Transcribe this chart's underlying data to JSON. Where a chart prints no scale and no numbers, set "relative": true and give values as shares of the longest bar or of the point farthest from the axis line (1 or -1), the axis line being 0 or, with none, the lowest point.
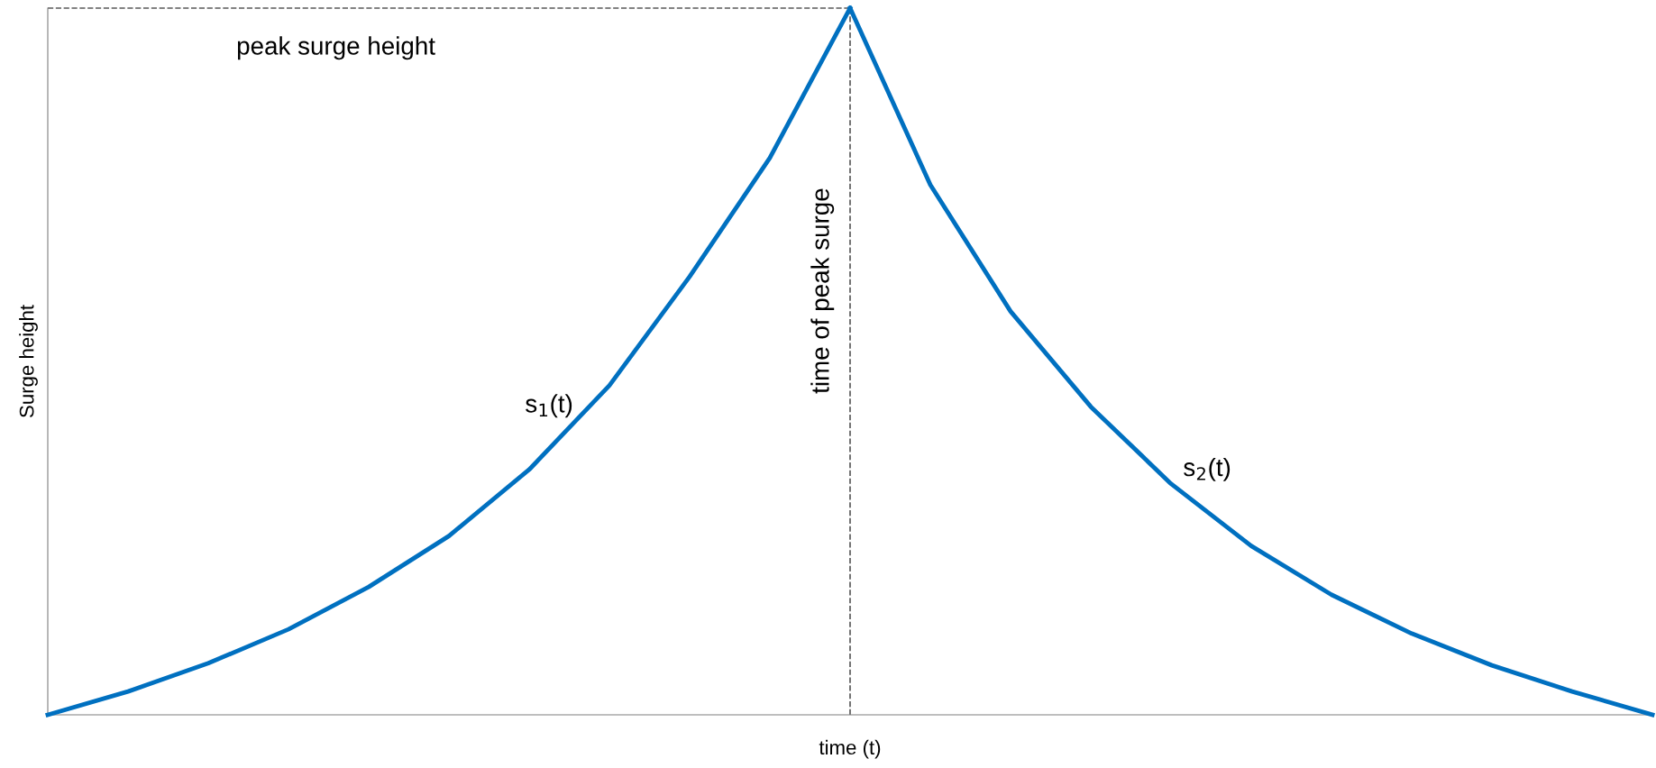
{
  "chart_data": {
    "type": "line",
    "relative": true,
    "xlabel": "time (t)",
    "ylabel": "Surge height",
    "categories": [
      null,
      null,
      null,
      null,
      null,
      null,
      null,
      null,
      null,
      null,
      null,
      null,
      null,
      null,
      null,
      null,
      null,
      null,
      null,
      null,
      null
    ],
    "series": [
      {
        "name": "s$_{1}$(t)",
        "color": "#0070c0",
        "values": [
          0,
          0.033,
          0.073,
          0.121,
          0.181,
          0.253,
          0.347,
          0.466,
          0.62,
          0.788,
          1,
          null,
          null,
          null,
          null,
          null,
          null,
          null,
          null,
          null,
          null
        ]
      },
      {
        "name": "s$_{2}$(t)",
        "color": "#0070c0",
        "values": [
          null,
          null,
          null,
          null,
          null,
          null,
          null,
          null,
          null,
          null,
          1,
          0.75,
          0.571,
          0.436,
          0.327,
          0.239,
          0.17,
          0.115,
          0.07,
          0.033,
          0
        ]
      }
    ],
    "ref_lines": [
      {
        "axis": "y",
        "value": 1,
        "label": "peak surge height",
        "color": "#595959",
        "line_style": "dashed"
      }
    ],
    "annotations": [
      "time of peak surge"
    ],
    "legend": false,
    "tick_labels": false,
    "line_style": "solid",
    "marker": "none"
  }
}
